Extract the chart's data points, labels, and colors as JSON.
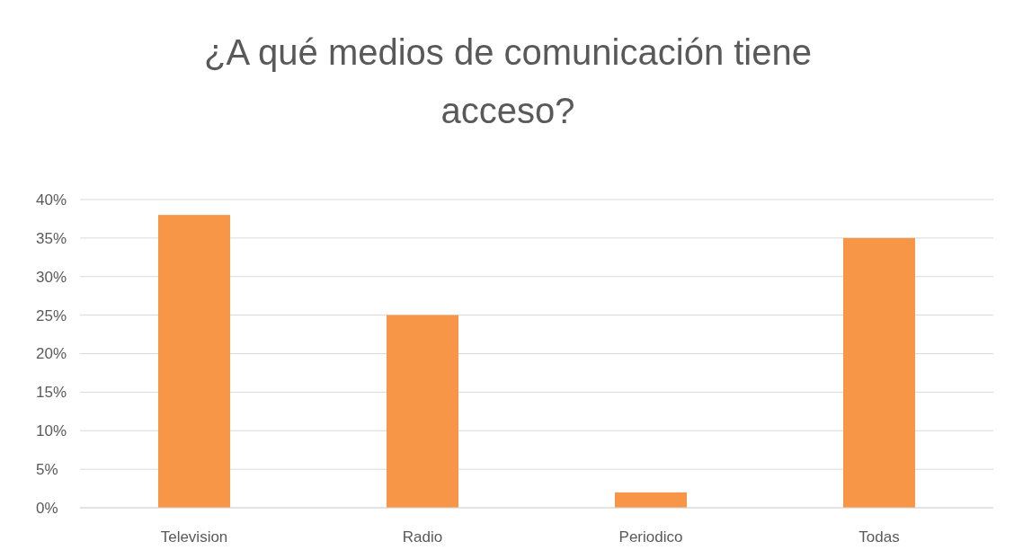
{
  "chart_data": {
    "type": "bar",
    "title": "¿A qué medios de comunicación tiene acceso?",
    "categories": [
      "Television",
      "Radio",
      "Periodico",
      "Todas"
    ],
    "values": [
      38,
      25,
      2,
      35
    ],
    "color": "#f79646",
    "ylim": [
      0,
      40
    ],
    "yticks": [
      {
        "value": 0,
        "label": "0%"
      },
      {
        "value": 5,
        "label": "5%"
      },
      {
        "value": 10,
        "label": "10%"
      },
      {
        "value": 15,
        "label": "15%"
      },
      {
        "value": 20,
        "label": "20%"
      },
      {
        "value": 25,
        "label": "25%"
      },
      {
        "value": 30,
        "label": "30%"
      },
      {
        "value": 35,
        "label": "35%"
      },
      {
        "value": 40,
        "label": "40%"
      }
    ],
    "grid": "y"
  }
}
